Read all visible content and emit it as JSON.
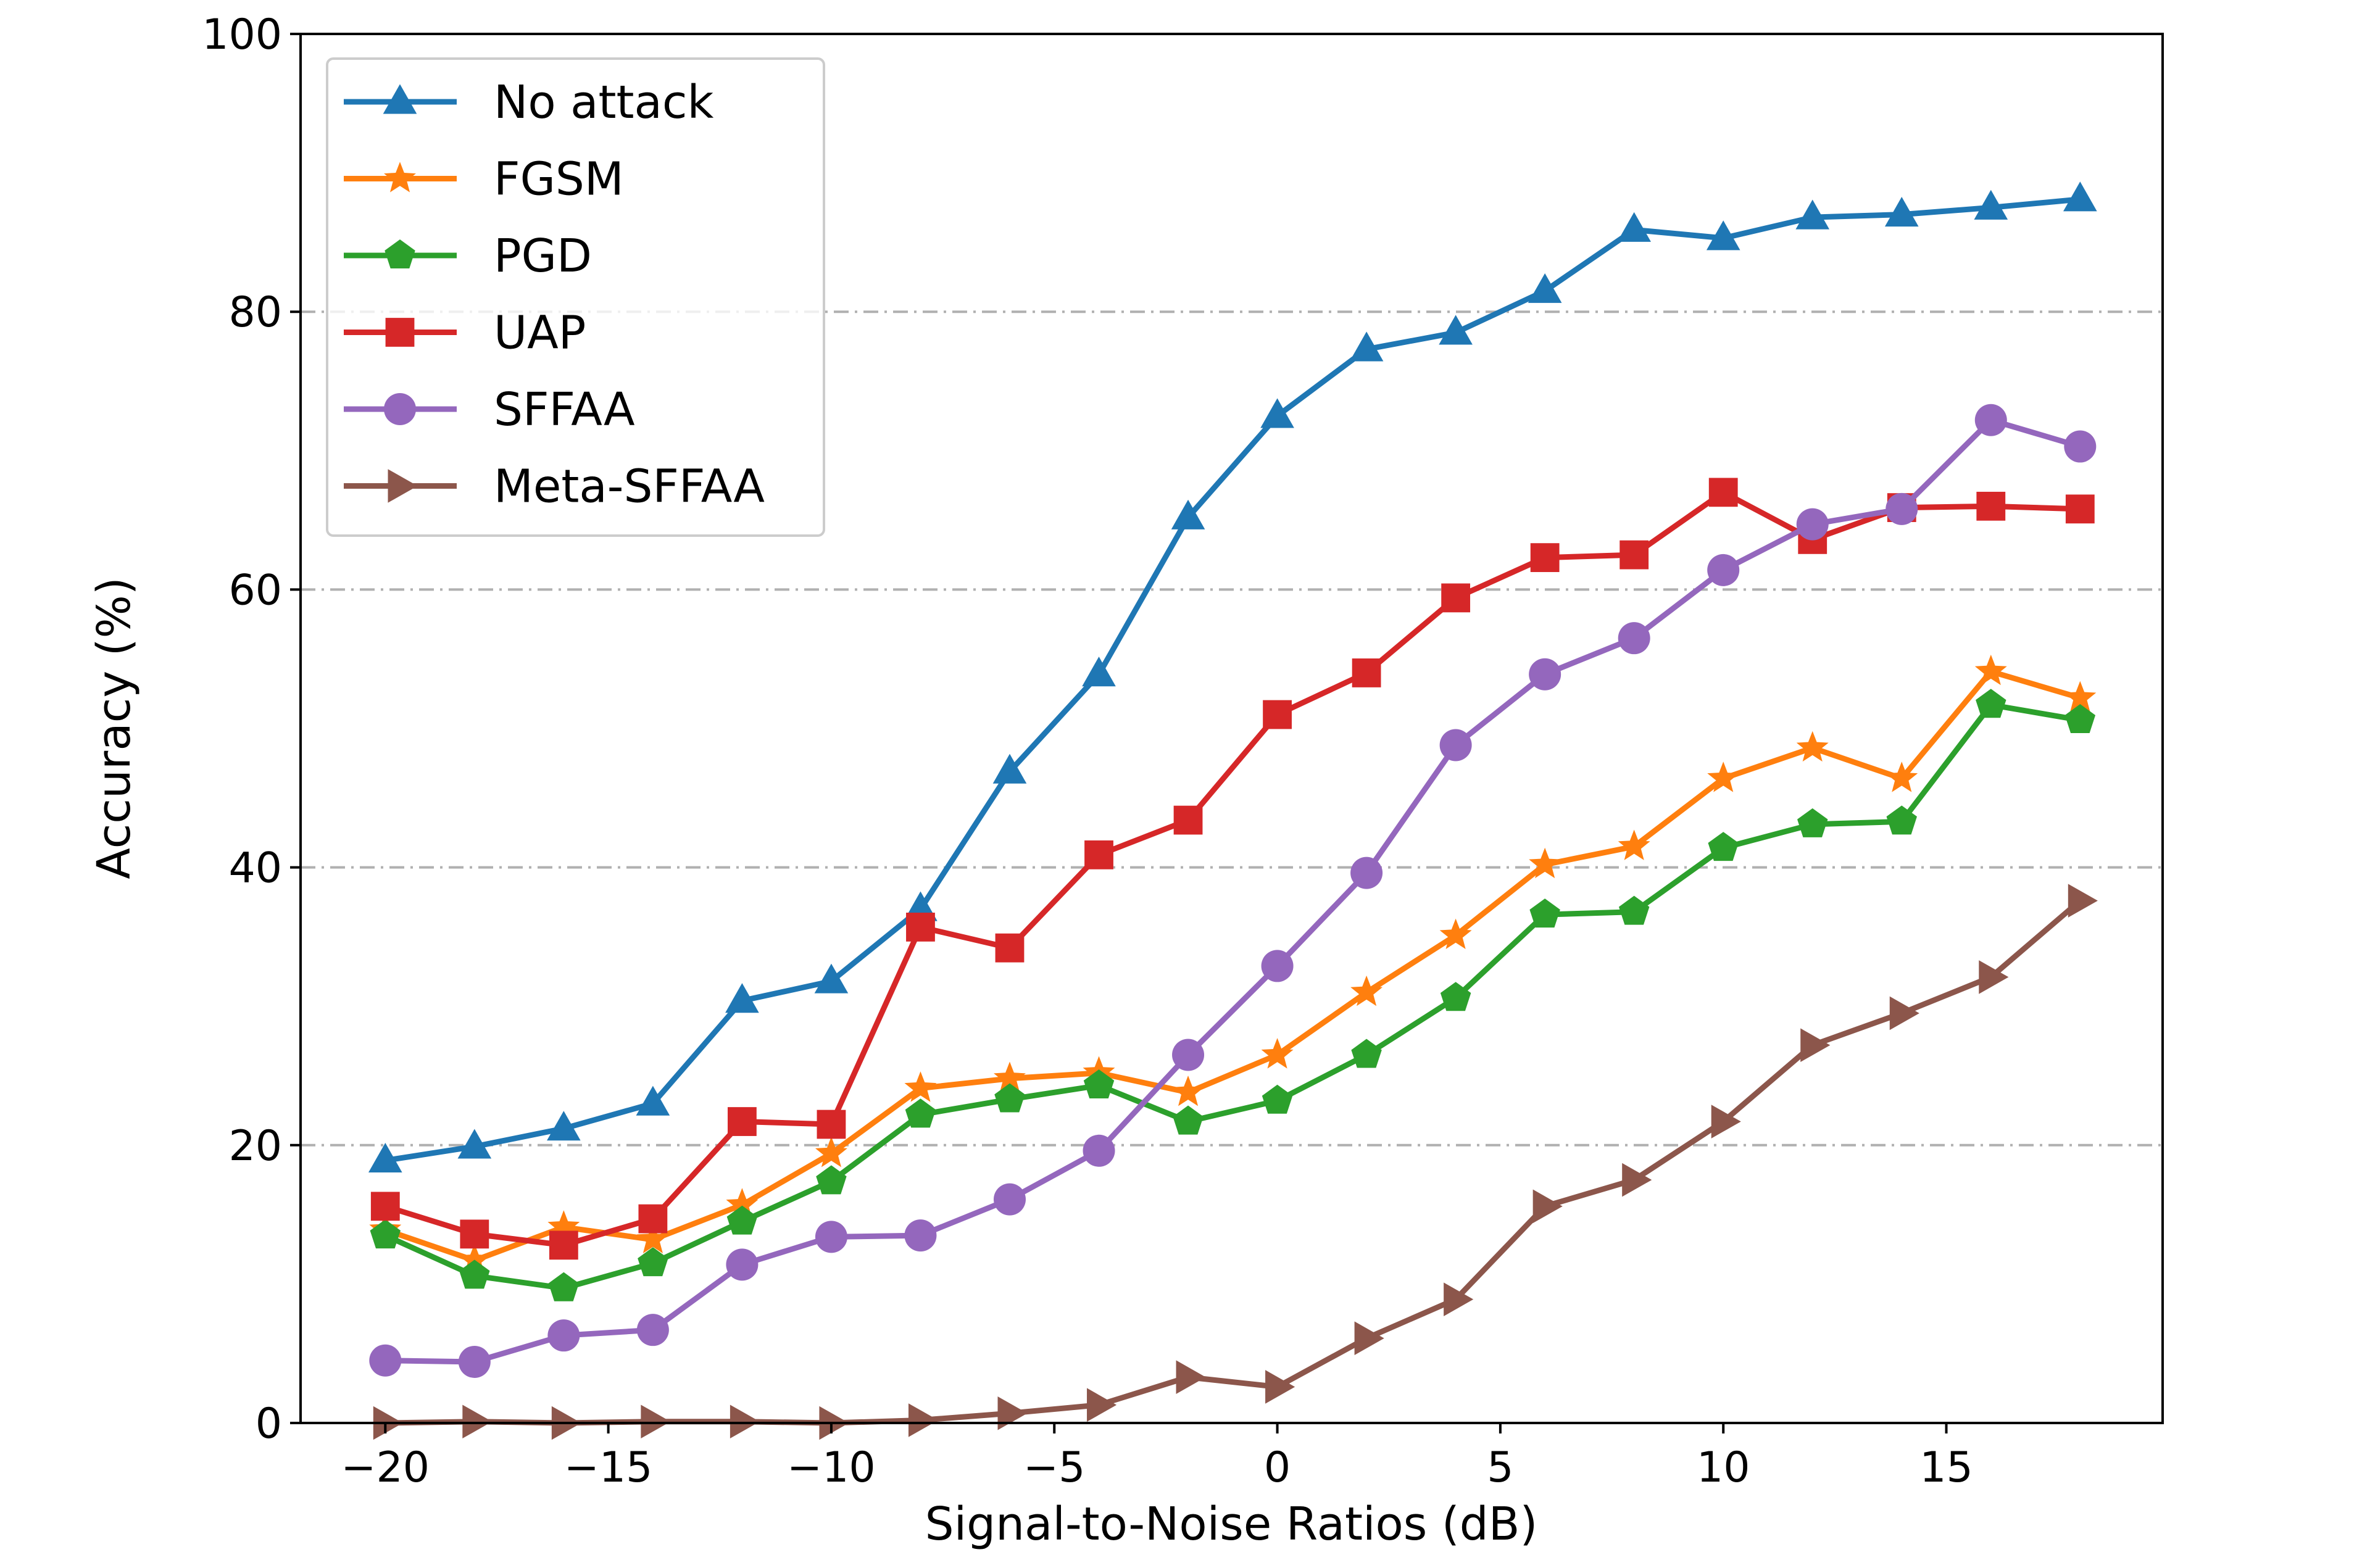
{
  "chart_data": {
    "type": "line",
    "title": "",
    "xlabel": "Signal-to-Noise Ratios (dB)",
    "ylabel": "Accuracy (%)",
    "xlim": [
      -21.9,
      19.85
    ],
    "ylim": [
      0,
      100
    ],
    "xticks": [
      -20,
      -15,
      -10,
      -5,
      0,
      5,
      10,
      15
    ],
    "xtick_labels": [
      "−20",
      "−15",
      "−10",
      "−5",
      "0",
      "5",
      "10",
      "15"
    ],
    "yticks": [
      0,
      20,
      40,
      60,
      80,
      100
    ],
    "ytick_labels": [
      "0",
      "20",
      "40",
      "60",
      "80",
      "100"
    ],
    "grid": {
      "axis": "y",
      "style": "dash-dot",
      "color": "#b0b0b0"
    },
    "legend_position": "top-left",
    "x": [
      -20,
      -18,
      -16,
      -14,
      -12,
      -10,
      -8,
      -6,
      -4,
      -2,
      0,
      2,
      4,
      6,
      8,
      10,
      12,
      14,
      16,
      18
    ],
    "series": [
      {
        "name": "No attack",
        "color": "#1f77b4",
        "marker": "triangle-up",
        "values": [
          18.9,
          19.9,
          21.2,
          23.0,
          30.4,
          31.8,
          37.0,
          46.9,
          53.9,
          65.2,
          72.5,
          77.3,
          78.5,
          81.5,
          85.9,
          85.3,
          86.8,
          87.0,
          87.5,
          88.1
        ]
      },
      {
        "name": "FGSM",
        "color": "#ff7f0e",
        "marker": "star",
        "values": [
          13.9,
          11.7,
          14.1,
          13.2,
          15.7,
          19.4,
          24.1,
          24.8,
          25.2,
          23.8,
          26.5,
          31.0,
          35.1,
          40.2,
          41.5,
          46.4,
          48.6,
          46.4,
          54.1,
          52.2
        ]
      },
      {
        "name": "PGD",
        "color": "#2ca02c",
        "marker": "pentagon",
        "values": [
          13.5,
          10.6,
          9.7,
          11.5,
          14.5,
          17.4,
          22.2,
          23.3,
          24.3,
          21.7,
          23.2,
          26.5,
          30.6,
          36.6,
          36.8,
          41.4,
          43.1,
          43.3,
          51.7,
          50.6
        ]
      },
      {
        "name": "UAP",
        "color": "#d62728",
        "marker": "square",
        "values": [
          15.6,
          13.6,
          12.8,
          14.7,
          21.7,
          21.5,
          35.7,
          34.2,
          40.9,
          43.4,
          51.0,
          54.0,
          59.4,
          62.3,
          62.5,
          67.0,
          63.6,
          65.9,
          66.0,
          65.8
        ]
      },
      {
        "name": "SFFAA",
        "color": "#9467bd",
        "marker": "circle",
        "values": [
          4.5,
          4.4,
          6.3,
          6.7,
          11.4,
          13.4,
          13.5,
          16.1,
          19.6,
          26.5,
          32.9,
          39.6,
          48.8,
          53.9,
          56.5,
          61.4,
          64.7,
          65.8,
          72.2,
          70.3
        ]
      },
      {
        "name": "Meta-SFFAA",
        "color": "#8c564b",
        "marker": "triangle-right",
        "values": [
          0.0,
          0.1,
          0.0,
          0.1,
          0.1,
          0.0,
          0.2,
          0.7,
          1.3,
          3.3,
          2.6,
          6.1,
          8.9,
          15.6,
          17.5,
          21.7,
          27.2,
          29.5,
          32.1,
          37.6
        ]
      }
    ]
  }
}
